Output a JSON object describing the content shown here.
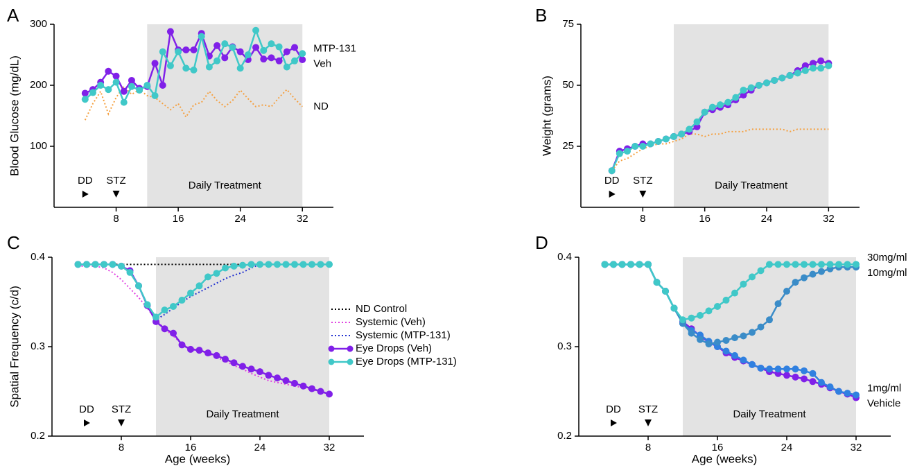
{
  "chart_data": [
    {
      "type": "line",
      "panel": "A",
      "ylabel": "Blood Glucose (mg/dL)",
      "x": [
        4,
        5,
        6,
        7,
        8,
        9,
        10,
        11,
        12,
        13,
        14,
        15,
        16,
        17,
        18,
        19,
        20,
        21,
        22,
        23,
        24,
        25,
        26,
        27,
        28,
        29,
        30,
        31,
        32
      ],
      "series": [
        {
          "name": "ND",
          "color": "#f5a040",
          "style": "dotted",
          "values": [
            143,
            170,
            190,
            153,
            180,
            198,
            185,
            193,
            183,
            180,
            170,
            160,
            170,
            148,
            168,
            172,
            190,
            175,
            165,
            175,
            192,
            178,
            165,
            168,
            165,
            180,
            193,
            178,
            165
          ]
        },
        {
          "name": "Veh",
          "color": "#8020e8",
          "style": "markers",
          "values": [
            187,
            193,
            205,
            223,
            215,
            190,
            208,
            195,
            198,
            236,
            200,
            288,
            258,
            258,
            258,
            285,
            248,
            265,
            245,
            263,
            255,
            242,
            262,
            243,
            245,
            240,
            255,
            262,
            242
          ]
        },
        {
          "name": "MTP-131",
          "color": "#40c8c8",
          "style": "markers",
          "values": [
            177,
            188,
            200,
            193,
            205,
            172,
            198,
            192,
            200,
            183,
            255,
            232,
            255,
            228,
            225,
            280,
            230,
            240,
            268,
            262,
            228,
            250,
            290,
            257,
            268,
            263,
            230,
            240,
            252
          ]
        }
      ],
      "xlim": [
        0,
        36
      ],
      "xticks": [
        8,
        16,
        24,
        32
      ],
      "ylim": [
        0,
        300
      ],
      "yticks": [
        100,
        200,
        300
      ],
      "shade": {
        "label": "Daily Treatment",
        "range": [
          12,
          32
        ]
      },
      "events": [
        {
          "label": "DD",
          "x": 4,
          "arrow": "right"
        },
        {
          "label": "STZ",
          "x": 8,
          "arrow": "down"
        }
      ],
      "legend": "end"
    },
    {
      "type": "line",
      "panel": "B",
      "ylabel": "Weight (grams)",
      "x": [
        4,
        5,
        6,
        7,
        8,
        9,
        10,
        11,
        12,
        13,
        14,
        15,
        16,
        17,
        18,
        19,
        20,
        21,
        22,
        23,
        24,
        25,
        26,
        27,
        28,
        29,
        30,
        31,
        32
      ],
      "series": [
        {
          "color": "#f5a040",
          "style": "dotted",
          "values": [
            15,
            19,
            20,
            22,
            24,
            25,
            26,
            26,
            27,
            28,
            30,
            30,
            29,
            30,
            30,
            31,
            31,
            31,
            32,
            32,
            32,
            32,
            32,
            31,
            32,
            32,
            32,
            32,
            32
          ]
        },
        {
          "color": "#8020e8",
          "style": "markers",
          "values": [
            15,
            23,
            24,
            25,
            26,
            26,
            27,
            28,
            29,
            30,
            31,
            33,
            39,
            40,
            41,
            42,
            44,
            46,
            48,
            50,
            51,
            52,
            53,
            54,
            56,
            58,
            59,
            60,
            59
          ]
        },
        {
          "color": "#40c8c8",
          "style": "markers",
          "values": [
            15,
            22,
            23,
            25,
            25,
            26,
            27,
            28,
            29,
            30,
            32,
            35,
            39,
            41,
            42,
            43,
            45,
            48,
            49,
            50,
            51,
            52,
            53,
            54,
            55,
            56,
            57,
            57,
            58
          ]
        }
      ],
      "xlim": [
        0,
        36
      ],
      "xticks": [
        8,
        16,
        24,
        32
      ],
      "ylim": [
        0,
        75
      ],
      "yticks": [
        25,
        50,
        75
      ],
      "shade": {
        "label": "Daily Treatment",
        "range": [
          12,
          32
        ]
      },
      "events": [
        {
          "label": "DD",
          "x": 4,
          "arrow": "right"
        },
        {
          "label": "STZ",
          "x": 8,
          "arrow": "down"
        }
      ]
    },
    {
      "type": "line",
      "panel": "C",
      "ylabel": "Spatial Frequency (c/d)",
      "xlabel": "Age (weeks)",
      "x": [
        3,
        4,
        5,
        6,
        7,
        8,
        9,
        10,
        11,
        12,
        13,
        14,
        15,
        16,
        17,
        18,
        19,
        20,
        21,
        22,
        23,
        24,
        25,
        26,
        27,
        28,
        29,
        30,
        31,
        32
      ],
      "series": [
        {
          "name": "ND Control",
          "color": "#000000",
          "style": "dotted",
          "values": [
            0.392,
            0.392,
            0.392,
            0.392,
            0.392,
            0.392,
            0.392,
            0.392,
            0.392,
            0.392,
            0.392,
            0.392,
            0.392,
            0.392,
            0.392,
            0.392,
            0.392,
            0.392,
            0.392,
            0.392,
            0.392,
            0.392,
            0.392,
            0.392,
            0.392,
            0.392,
            0.392,
            0.392,
            0.392,
            0.392
          ]
        },
        {
          "name": "Systemic (Veh)",
          "color": "#e040e0",
          "style": "dotted",
          "values": [
            0.39,
            0.39,
            0.39,
            0.388,
            0.383,
            0.375,
            0.365,
            0.355,
            0.343,
            0.33,
            0.32,
            0.312,
            0.303,
            0.298,
            0.296,
            0.292,
            0.288,
            0.284,
            0.279,
            0.275,
            0.27,
            0.266,
            0.262,
            0.26,
            0.258,
            0.256,
            0.254,
            0.252,
            0.25,
            0.247
          ]
        },
        {
          "name": "Systemic (MTP-131)",
          "color": "#2030d0",
          "style": "dotted",
          "values": [
            0.392,
            0.392,
            0.392,
            0.392,
            0.392,
            0.39,
            0.385,
            0.368,
            0.346,
            0.33,
            0.336,
            0.343,
            0.35,
            0.356,
            0.361,
            0.366,
            0.371,
            0.376,
            0.38,
            0.383,
            0.388,
            0.392,
            0.392,
            0.392,
            0.392,
            0.392,
            0.392,
            0.392,
            0.392,
            0.392
          ]
        },
        {
          "name": "Eye Drops (Veh)",
          "color": "#8020e8",
          "style": "markers",
          "values": [
            0.392,
            0.392,
            0.392,
            0.392,
            0.392,
            0.39,
            0.385,
            0.368,
            0.346,
            0.328,
            0.32,
            0.315,
            0.302,
            0.297,
            0.296,
            0.293,
            0.29,
            0.286,
            0.282,
            0.278,
            0.275,
            0.272,
            0.268,
            0.265,
            0.262,
            0.259,
            0.256,
            0.253,
            0.25,
            0.247
          ]
        },
        {
          "name": "Eye Drops (MTP-131)",
          "color": "#40c8c8",
          "style": "markers",
          "values": [
            0.392,
            0.392,
            0.392,
            0.392,
            0.392,
            0.39,
            0.383,
            0.368,
            0.347,
            0.333,
            0.341,
            0.345,
            0.352,
            0.36,
            0.368,
            0.378,
            0.382,
            0.388,
            0.39,
            0.391,
            0.392,
            0.392,
            0.392,
            0.392,
            0.392,
            0.392,
            0.392,
            0.392,
            0.392,
            0.392
          ]
        }
      ],
      "xlim": [
        0,
        36
      ],
      "xticks": [
        8,
        16,
        24,
        32
      ],
      "ylim": [
        0.2,
        0.4
      ],
      "yticks": [
        0.2,
        0.3,
        0.4
      ],
      "shade": {
        "label": "Daily Treatment",
        "range": [
          12,
          32
        ]
      },
      "events": [
        {
          "label": "DD",
          "x": 4,
          "arrow": "right"
        },
        {
          "label": "STZ",
          "x": 8,
          "arrow": "down"
        }
      ],
      "legend": "right"
    },
    {
      "type": "line",
      "panel": "D",
      "xlabel": "Age (weeks)",
      "x": [
        3,
        4,
        5,
        6,
        7,
        8,
        9,
        10,
        11,
        12,
        13,
        14,
        15,
        16,
        17,
        18,
        19,
        20,
        21,
        22,
        23,
        24,
        25,
        26,
        27,
        28,
        29,
        30,
        31,
        32
      ],
      "series": [
        {
          "name": "Vehicle",
          "color": "#8020e8",
          "style": "markers",
          "values": [
            0.392,
            0.392,
            0.392,
            0.392,
            0.392,
            0.392,
            0.372,
            0.362,
            0.343,
            0.328,
            0.32,
            0.312,
            0.305,
            0.3,
            0.293,
            0.288,
            0.284,
            0.28,
            0.276,
            0.272,
            0.27,
            0.268,
            0.266,
            0.264,
            0.261,
            0.258,
            0.254,
            0.25,
            0.247,
            0.243
          ]
        },
        {
          "name": "1mg/ml",
          "color": "#3080e0",
          "style": "markers",
          "values": [
            0.392,
            0.392,
            0.392,
            0.392,
            0.392,
            0.392,
            0.372,
            0.362,
            0.343,
            0.326,
            0.318,
            0.313,
            0.306,
            0.3,
            0.295,
            0.29,
            0.285,
            0.28,
            0.276,
            0.275,
            0.275,
            0.275,
            0.275,
            0.273,
            0.27,
            0.26,
            0.255,
            0.25,
            0.248,
            0.246
          ]
        },
        {
          "name": "10mg/ml",
          "color": "#3a8cc8",
          "style": "markers",
          "values": [
            0.392,
            0.392,
            0.392,
            0.392,
            0.392,
            0.392,
            0.372,
            0.362,
            0.343,
            0.326,
            0.315,
            0.308,
            0.303,
            0.305,
            0.307,
            0.31,
            0.312,
            0.316,
            0.322,
            0.33,
            0.348,
            0.362,
            0.372,
            0.377,
            0.381,
            0.384,
            0.387,
            0.389,
            0.389,
            0.389
          ]
        },
        {
          "name": "30mg/ml",
          "color": "#40c8c8",
          "style": "markers",
          "values": [
            0.392,
            0.392,
            0.392,
            0.392,
            0.392,
            0.392,
            0.372,
            0.362,
            0.343,
            0.33,
            0.332,
            0.335,
            0.34,
            0.345,
            0.352,
            0.36,
            0.37,
            0.378,
            0.385,
            0.392,
            0.392,
            0.392,
            0.392,
            0.392,
            0.392,
            0.392,
            0.392,
            0.392,
            0.392,
            0.392
          ]
        }
      ],
      "xlim": [
        0,
        36
      ],
      "xticks": [
        8,
        16,
        24,
        32
      ],
      "ylim": [
        0.2,
        0.4
      ],
      "yticks": [
        0.2,
        0.3,
        0.4
      ],
      "shade": {
        "label": "Daily Treatment",
        "range": [
          12,
          32
        ]
      },
      "events": [
        {
          "label": "DD",
          "x": 4,
          "arrow": "right"
        },
        {
          "label": "STZ",
          "x": 8,
          "arrow": "down"
        }
      ],
      "legend": "end",
      "end_label_color": "#000000"
    }
  ]
}
